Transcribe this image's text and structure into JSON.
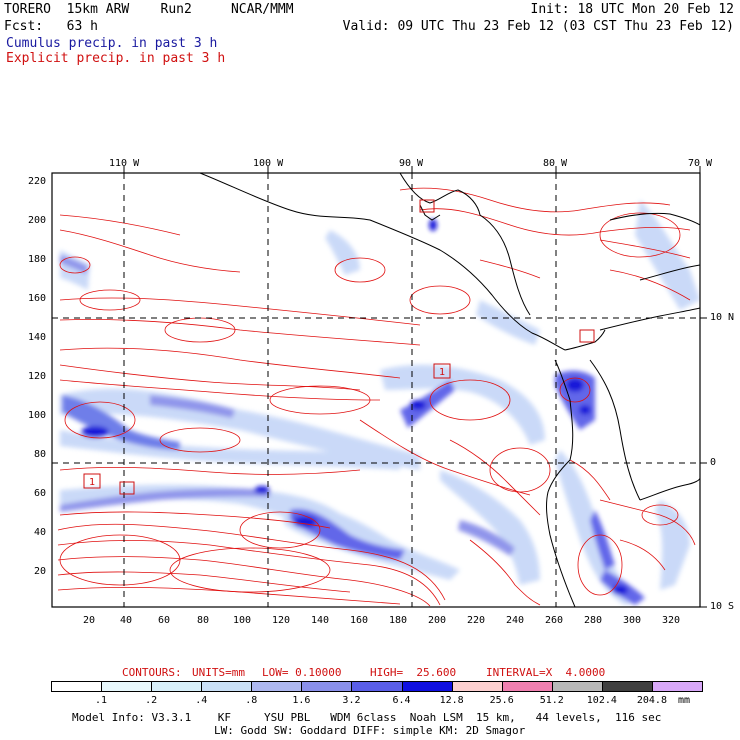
{
  "header": {
    "line1_left": "TORERO  15km ARW    Run2     NCAR/MMM",
    "line1_right": "Init: 18 UTC Mon 20 Feb 12",
    "line2_left": "Fcst:   63 h",
    "line2_right": "Valid: 09 UTC Thu 23 Feb 12 (03 CST Thu 23 Feb 12)",
    "legend_cumulus": "Cumulus precip. in past 3 h",
    "legend_explicit": "Explicit precip. in past 3 h"
  },
  "map": {
    "top_lon_labels": [
      "110 W",
      "100 W",
      "90 W",
      "80 W",
      "70 W"
    ],
    "left_grid_labels": [
      "220",
      "200",
      "180",
      "160",
      "140",
      "120",
      "100",
      "80",
      "60",
      "40",
      "20"
    ],
    "bottom_grid_labels": [
      "20",
      "40",
      "60",
      "80",
      "100",
      "120",
      "140",
      "160",
      "180",
      "200",
      "220",
      "240",
      "260",
      "280",
      "300",
      "320"
    ],
    "right_lat_labels": [
      "10 N",
      "0",
      "10 S"
    ],
    "box_labels": [
      "1",
      "1"
    ],
    "colors": {
      "contour": "#e01010",
      "coast": "#000000",
      "precip_light": "#c8d8f8",
      "precip_mid": "#6878e8",
      "precip_heavy": "#1010d8"
    }
  },
  "contours_info": {
    "label": "CONTOURS:",
    "units": "UNITS=mm",
    "low": "LOW= 0.10000",
    "high": "HIGH=  25.600",
    "interval": "INTERVAL=X  4.0000"
  },
  "colorbar": {
    "labels": [
      ".1",
      ".2",
      ".4",
      ".8",
      "1.6",
      "3.2",
      "6.4",
      "12.8",
      "25.6",
      "51.2",
      "102.4",
      "204.8"
    ],
    "unit": "mm",
    "colors": [
      "#ffffff",
      "#e8f8fc",
      "#d8f0fa",
      "#cae0f6",
      "#aeb8f0",
      "#8a90ea",
      "#5a5ee8",
      "#1010e0",
      "#fcd0d0",
      "#f080b0",
      "#b8b8b8",
      "#404040",
      "#d8a8f8"
    ]
  },
  "footer": {
    "line1": "Model Info: V3.3.1    KF     YSU PBL   WDM 6class  Noah LSM  15 km,   44 levels,  116 sec",
    "line2": "LW: Godd SW: Goddard DIFF: simple KM: 2D Smagor"
  }
}
